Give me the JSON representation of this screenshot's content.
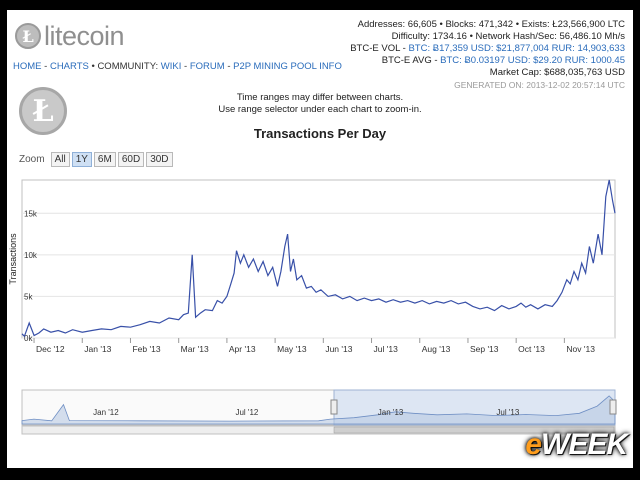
{
  "header": {
    "logo_text": "litecoin",
    "logo_glyph": "Ł",
    "nav": {
      "home": "HOME",
      "charts": "CHARTS",
      "community": "• COMMUNITY:",
      "wiki": "WIKI",
      "forum": "FORUM",
      "pool": "P2P MINING POOL INFO",
      "sep": "-"
    }
  },
  "stats": {
    "line1": "Addresses: 66,605 • Blocks: 471,342 • Exists: Ł23,566,900 LTC",
    "line2": "Difficulty: 1734.16 • Network Hash/Sec: 56,486.10 Mh/s",
    "vol_label": "BTC-E VOL -",
    "vol_value": "BTC: Ƀ17,359  USD: $21,877,004  RUR: 14,903,633",
    "avg_label": "BTC-E AVG -",
    "avg_value": "BTC: Ƀ0.03197  USD: $29.20  RUR: 1000.45",
    "market_cap": "Market Cap: $688,035,763 USD",
    "generated": "GENERATED ON: 2013-12-02 20:57:14 UTC"
  },
  "note": {
    "line1": "Time ranges may differ between charts.",
    "line2": "Use range selector under each chart to zoom-in."
  },
  "zoom": {
    "label": "Zoom",
    "buttons": [
      "All",
      "1Y",
      "6M",
      "60D",
      "30D"
    ],
    "active": "1Y"
  },
  "watermark": {
    "e": "e",
    "rest": "WEEK"
  },
  "chart_data": {
    "type": "line",
    "title": "Transactions Per Day",
    "ylabel": "Transactions",
    "ylim": [
      0,
      19000
    ],
    "yticks": [
      0,
      5000,
      10000,
      15000
    ],
    "ytick_labels": [
      "0k",
      "5k",
      "10k",
      "15k"
    ],
    "x_tick_labels": [
      "Dec '12",
      "Jan '13",
      "Feb '13",
      "Mar '13",
      "Apr '13",
      "May '13",
      "Jun '13",
      "Jul '13",
      "Aug '13",
      "Sep '13",
      "Oct '13",
      "Nov '13"
    ],
    "x_tick_months": [
      0,
      1,
      2,
      3,
      4,
      5,
      6,
      7,
      8,
      9,
      10,
      11
    ],
    "x_range_months": [
      -0.25,
      12.05
    ],
    "series": [
      {
        "color": "#3850a8",
        "points": [
          [
            -0.25,
            500
          ],
          [
            -0.2,
            200
          ],
          [
            -0.1,
            1800
          ],
          [
            0,
            300
          ],
          [
            0.1,
            600
          ],
          [
            0.2,
            1100
          ],
          [
            0.35,
            700
          ],
          [
            0.5,
            900
          ],
          [
            0.65,
            600
          ],
          [
            0.8,
            1000
          ],
          [
            1.0,
            700
          ],
          [
            1.2,
            900
          ],
          [
            1.4,
            1100
          ],
          [
            1.6,
            1000
          ],
          [
            1.8,
            1400
          ],
          [
            2.0,
            1300
          ],
          [
            2.2,
            1600
          ],
          [
            2.4,
            2000
          ],
          [
            2.6,
            1800
          ],
          [
            2.8,
            2400
          ],
          [
            3.0,
            2200
          ],
          [
            3.1,
            2800
          ],
          [
            3.2,
            3000
          ],
          [
            3.28,
            10000
          ],
          [
            3.35,
            2500
          ],
          [
            3.45,
            3000
          ],
          [
            3.55,
            3400
          ],
          [
            3.7,
            3300
          ],
          [
            3.8,
            4500
          ],
          [
            3.9,
            4200
          ],
          [
            4.0,
            5000
          ],
          [
            4.08,
            6500
          ],
          [
            4.15,
            7800
          ],
          [
            4.2,
            10500
          ],
          [
            4.28,
            9000
          ],
          [
            4.35,
            10000
          ],
          [
            4.45,
            8500
          ],
          [
            4.55,
            9500
          ],
          [
            4.65,
            8000
          ],
          [
            4.75,
            9200
          ],
          [
            4.85,
            7500
          ],
          [
            4.95,
            8500
          ],
          [
            5.05,
            6200
          ],
          [
            5.12,
            8000
          ],
          [
            5.2,
            11000
          ],
          [
            5.26,
            12500
          ],
          [
            5.32,
            8000
          ],
          [
            5.38,
            9500
          ],
          [
            5.45,
            7000
          ],
          [
            5.55,
            7500
          ],
          [
            5.65,
            6000
          ],
          [
            5.75,
            6200
          ],
          [
            5.85,
            5500
          ],
          [
            5.95,
            5800
          ],
          [
            6.1,
            5000
          ],
          [
            6.25,
            5200
          ],
          [
            6.4,
            4700
          ],
          [
            6.55,
            5000
          ],
          [
            6.7,
            4500
          ],
          [
            6.85,
            4800
          ],
          [
            7.0,
            4500
          ],
          [
            7.15,
            4700
          ],
          [
            7.3,
            4300
          ],
          [
            7.45,
            4600
          ],
          [
            7.6,
            4300
          ],
          [
            7.75,
            4500
          ],
          [
            7.9,
            4200
          ],
          [
            8.05,
            4500
          ],
          [
            8.2,
            4100
          ],
          [
            8.35,
            4400
          ],
          [
            8.5,
            4200
          ],
          [
            8.65,
            4500
          ],
          [
            8.8,
            4100
          ],
          [
            8.95,
            4300
          ],
          [
            9.1,
            3800
          ],
          [
            9.25,
            3500
          ],
          [
            9.4,
            3700
          ],
          [
            9.55,
            3300
          ],
          [
            9.7,
            3900
          ],
          [
            9.85,
            3500
          ],
          [
            10.0,
            3800
          ],
          [
            10.1,
            4200
          ],
          [
            10.2,
            3700
          ],
          [
            10.3,
            4000
          ],
          [
            10.45,
            3500
          ],
          [
            10.6,
            4000
          ],
          [
            10.75,
            3800
          ],
          [
            10.85,
            4500
          ],
          [
            10.95,
            5500
          ],
          [
            11.05,
            7000
          ],
          [
            11.12,
            6500
          ],
          [
            11.2,
            8000
          ],
          [
            11.28,
            7000
          ],
          [
            11.36,
            9000
          ],
          [
            11.44,
            7800
          ],
          [
            11.52,
            11000
          ],
          [
            11.6,
            9000
          ],
          [
            11.7,
            12500
          ],
          [
            11.78,
            10000
          ],
          [
            11.86,
            17000
          ],
          [
            11.93,
            19000
          ],
          [
            12.0,
            16500
          ],
          [
            12.05,
            15000
          ]
        ]
      }
    ],
    "navigator": {
      "x_tick_labels": [
        "Jan '12",
        "Jul '12",
        "Jan '13",
        "Jul '13"
      ]
    }
  }
}
